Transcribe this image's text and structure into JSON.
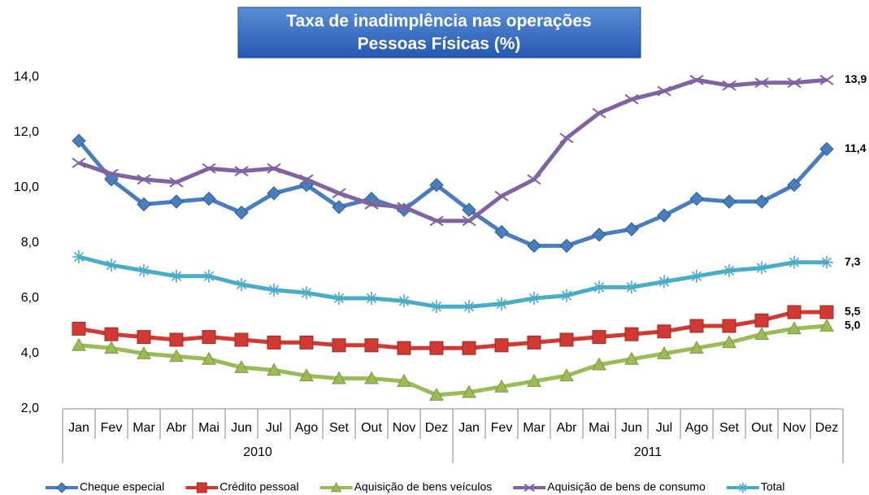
{
  "chart_data": {
    "type": "line",
    "title_lines": [
      "Taxa de inadimplência nas operações",
      "Pessoas Físicas (%)"
    ],
    "categories": [
      "Jan",
      "Fev",
      "Mar",
      "Abr",
      "Mai",
      "Jun",
      "Jul",
      "Ago",
      "Set",
      "Out",
      "Nov",
      "Dez",
      "Jan",
      "Fev",
      "Mar",
      "Abr",
      "Mai",
      "Jun",
      "Jul",
      "Ago",
      "Set",
      "Out",
      "Nov",
      "Dez"
    ],
    "category_groups": [
      "2010",
      "2011"
    ],
    "ylim": [
      2,
      14
    ],
    "yticks": [
      {
        "value": 2,
        "label": "2,0"
      },
      {
        "value": 4,
        "label": "4,0"
      },
      {
        "value": 6,
        "label": "6,0"
      },
      {
        "value": 8,
        "label": "8,0"
      },
      {
        "value": 10,
        "label": "10,0"
      },
      {
        "value": 12,
        "label": "12,0"
      },
      {
        "value": 14,
        "label": "14,0"
      }
    ],
    "series": [
      {
        "name": "Cheque especial",
        "color": "#4a7ebb",
        "marker": "diamond",
        "values": [
          11.7,
          10.3,
          9.4,
          9.5,
          9.6,
          9.1,
          9.8,
          10.1,
          9.3,
          9.6,
          9.2,
          10.1,
          9.2,
          8.4,
          7.9,
          7.9,
          8.3,
          8.5,
          9.0,
          9.6,
          9.5,
          9.5,
          10.1,
          11.4
        ],
        "value_labels": [
          null,
          null,
          null,
          null,
          null,
          null,
          null,
          null,
          null,
          null,
          null,
          null,
          null,
          null,
          null,
          null,
          null,
          null,
          null,
          null,
          null,
          null,
          null,
          "11,4"
        ]
      },
      {
        "name": "Crédito pessoal",
        "color": "#d03a32",
        "marker": "square",
        "values": [
          4.9,
          4.7,
          4.6,
          4.5,
          4.6,
          4.5,
          4.4,
          4.4,
          4.3,
          4.3,
          4.2,
          4.2,
          4.2,
          4.3,
          4.4,
          4.5,
          4.6,
          4.7,
          4.8,
          5.0,
          5.0,
          5.2,
          5.5,
          5.5
        ],
        "value_labels": [
          null,
          null,
          null,
          null,
          null,
          null,
          null,
          null,
          null,
          null,
          null,
          null,
          null,
          null,
          null,
          null,
          null,
          null,
          null,
          null,
          null,
          null,
          null,
          "5,5"
        ]
      },
      {
        "name": "Aquisição de bens veículos",
        "color": "#9bbb59",
        "marker": "triangle",
        "values": [
          4.3,
          4.2,
          4.0,
          3.9,
          3.8,
          3.5,
          3.4,
          3.2,
          3.1,
          3.1,
          3.0,
          2.5,
          2.6,
          2.8,
          3.0,
          3.2,
          3.6,
          3.8,
          4.0,
          4.2,
          4.4,
          4.7,
          4.9,
          5.0
        ],
        "value_labels": [
          null,
          null,
          null,
          null,
          null,
          null,
          null,
          null,
          null,
          null,
          null,
          null,
          null,
          null,
          null,
          null,
          null,
          null,
          null,
          null,
          null,
          null,
          null,
          "5,0"
        ]
      },
      {
        "name": "Aquisição de bens de consumo",
        "color": "#8064a2",
        "marker": "x",
        "values": [
          10.9,
          10.5,
          10.3,
          10.2,
          10.7,
          10.6,
          10.7,
          10.3,
          9.8,
          9.4,
          9.3,
          8.8,
          8.8,
          9.7,
          10.3,
          11.8,
          12.7,
          13.2,
          13.5,
          13.9,
          13.7,
          13.8,
          13.8,
          13.9
        ],
        "value_labels": [
          null,
          null,
          null,
          null,
          null,
          null,
          null,
          null,
          null,
          null,
          null,
          null,
          null,
          null,
          null,
          null,
          null,
          null,
          null,
          null,
          null,
          null,
          null,
          "13,9"
        ]
      },
      {
        "name": "Total",
        "color": "#4bacc6",
        "marker": "star",
        "values": [
          7.5,
          7.2,
          7.0,
          6.8,
          6.8,
          6.5,
          6.3,
          6.2,
          6.0,
          6.0,
          5.9,
          5.7,
          5.7,
          5.8,
          6.0,
          6.1,
          6.4,
          6.4,
          6.6,
          6.8,
          7.0,
          7.1,
          7.3,
          7.3
        ],
        "value_labels": [
          null,
          null,
          null,
          null,
          null,
          null,
          null,
          null,
          null,
          null,
          null,
          null,
          null,
          null,
          null,
          null,
          null,
          null,
          null,
          null,
          null,
          null,
          null,
          "7,3"
        ]
      }
    ]
  }
}
